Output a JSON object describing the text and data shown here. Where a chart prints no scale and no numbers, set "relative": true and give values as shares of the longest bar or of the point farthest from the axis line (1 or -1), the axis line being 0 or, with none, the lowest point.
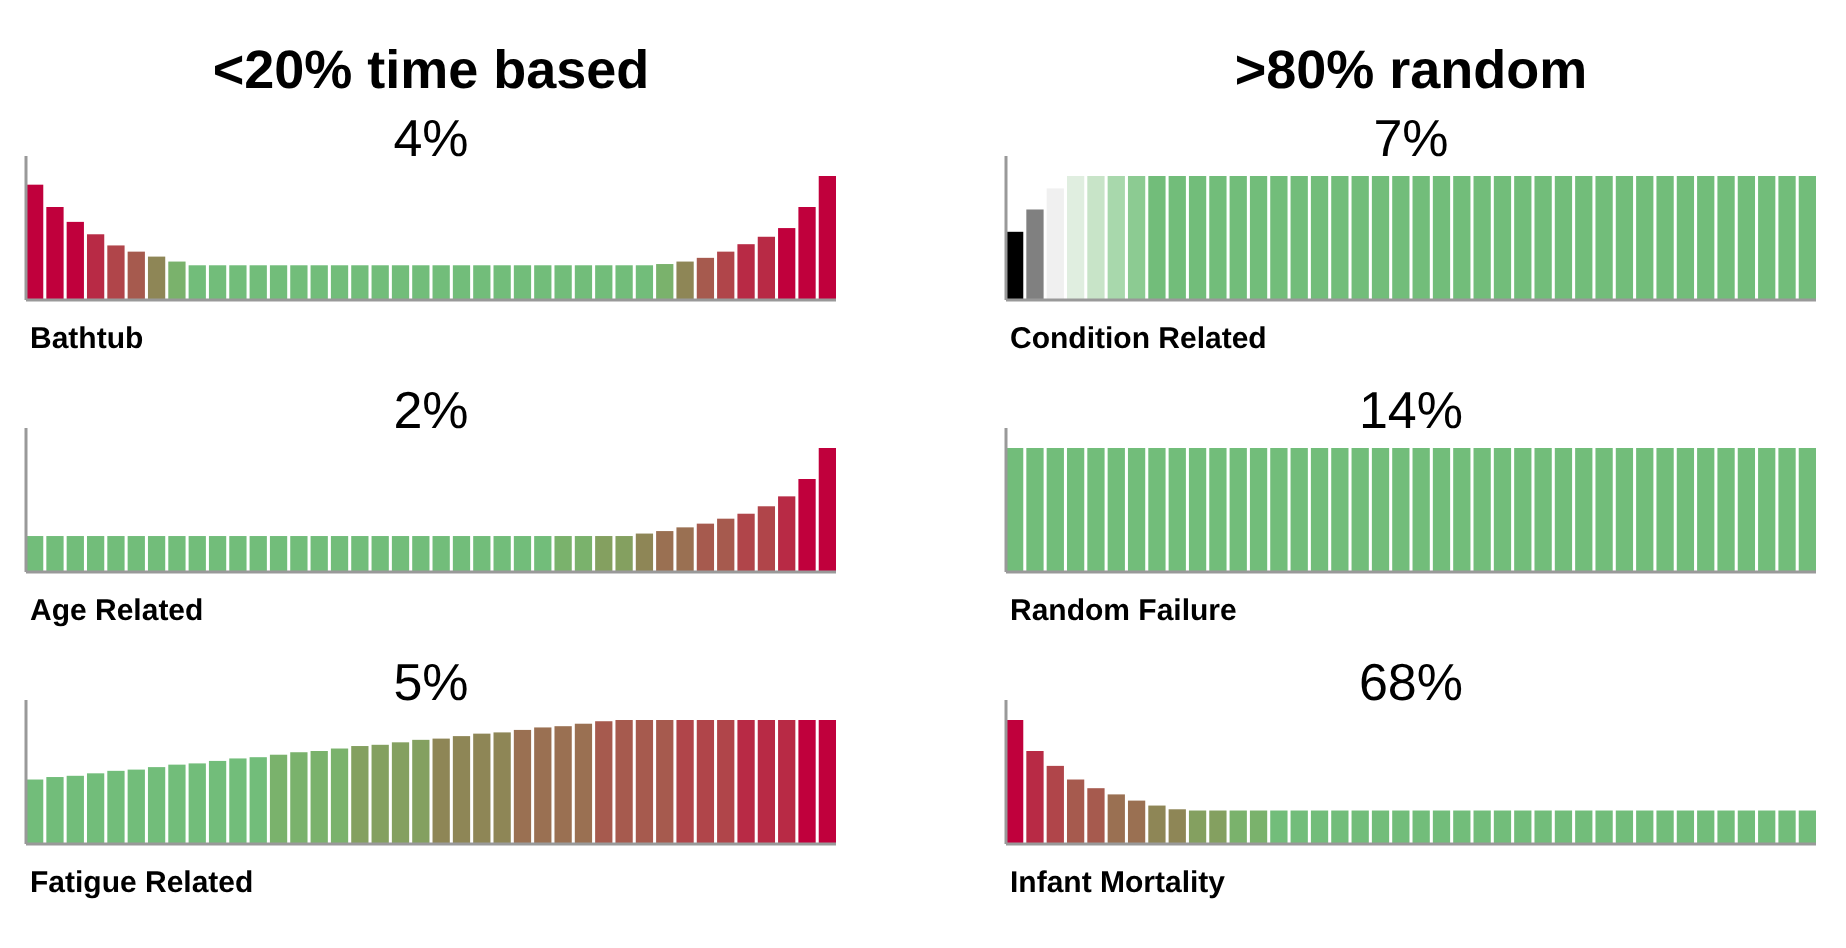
{
  "chart_data": [
    {
      "type": "bar",
      "title": "<20% time based",
      "xlabel": "Bathtub",
      "annotations": [
        "4%"
      ],
      "relative": true,
      "categories": [
        null,
        null,
        null,
        null,
        null,
        null,
        null,
        null,
        null,
        null,
        null,
        null,
        null,
        null,
        null,
        null,
        null,
        null,
        null,
        null,
        null,
        null,
        null,
        null,
        null,
        null,
        null,
        null,
        null,
        null,
        null,
        null,
        null,
        null,
        null,
        null,
        null,
        null,
        null,
        null
      ],
      "values": [
        0.93,
        0.75,
        0.63,
        0.53,
        0.44,
        0.39,
        0.35,
        0.31,
        0.28,
        0.28,
        0.28,
        0.28,
        0.28,
        0.28,
        0.28,
        0.28,
        0.28,
        0.28,
        0.28,
        0.28,
        0.28,
        0.28,
        0.28,
        0.28,
        0.28,
        0.28,
        0.28,
        0.28,
        0.28,
        0.28,
        0.28,
        0.29,
        0.31,
        0.34,
        0.39,
        0.45,
        0.51,
        0.58,
        0.75,
        1.0
      ],
      "colors": [
        "#c0003c",
        "#c0003c",
        "#c0003c",
        "#b82a45",
        "#b0454a",
        "#a65a4e",
        "#8e8656",
        "#7ab26c",
        "#72bd7a",
        "#72bd7a",
        "#72bd7a",
        "#72bd7a",
        "#72bd7a",
        "#72bd7a",
        "#72bd7a",
        "#72bd7a",
        "#72bd7a",
        "#72bd7a",
        "#72bd7a",
        "#72bd7a",
        "#72bd7a",
        "#72bd7a",
        "#72bd7a",
        "#72bd7a",
        "#72bd7a",
        "#72bd7a",
        "#72bd7a",
        "#72bd7a",
        "#72bd7a",
        "#72bd7a",
        "#72bd7a",
        "#7ab26c",
        "#8e8656",
        "#a65a4e",
        "#b0454a",
        "#b82a45",
        "#b82a45",
        "#c0003c",
        "#c0003c",
        "#c0003c"
      ]
    },
    {
      "type": "bar",
      "title": ">80% random",
      "xlabel": "Condition Related",
      "annotations": [
        "7%"
      ],
      "relative": true,
      "categories": [
        null,
        null,
        null,
        null,
        null,
        null,
        null,
        null,
        null,
        null,
        null,
        null,
        null,
        null,
        null,
        null,
        null,
        null,
        null,
        null,
        null,
        null,
        null,
        null,
        null,
        null,
        null,
        null,
        null,
        null,
        null,
        null,
        null,
        null,
        null,
        null,
        null,
        null,
        null,
        null
      ],
      "values": [
        0.55,
        0.73,
        0.9,
        1,
        1,
        1,
        1,
        1,
        1,
        1,
        1,
        1,
        1,
        1,
        1,
        1,
        1,
        1,
        1,
        1,
        1,
        1,
        1,
        1,
        1,
        1,
        1,
        1,
        1,
        1,
        1,
        1,
        1,
        1,
        1,
        1,
        1,
        1,
        1,
        1
      ],
      "colors": [
        "#000000",
        "#808080",
        "#f0f0f0",
        "#e0eee0",
        "#c8e4c8",
        "#a8d8ac",
        "#8ccb92",
        "#72bd7a",
        "#72bd7a",
        "#72bd7a",
        "#72bd7a",
        "#72bd7a",
        "#72bd7a",
        "#72bd7a",
        "#72bd7a",
        "#72bd7a",
        "#72bd7a",
        "#72bd7a",
        "#72bd7a",
        "#72bd7a",
        "#72bd7a",
        "#72bd7a",
        "#72bd7a",
        "#72bd7a",
        "#72bd7a",
        "#72bd7a",
        "#72bd7a",
        "#72bd7a",
        "#72bd7a",
        "#72bd7a",
        "#72bd7a",
        "#72bd7a",
        "#72bd7a",
        "#72bd7a",
        "#72bd7a",
        "#72bd7a",
        "#72bd7a",
        "#72bd7a",
        "#72bd7a",
        "#72bd7a"
      ]
    },
    {
      "type": "bar",
      "xlabel": "Age Related",
      "annotations": [
        "2%"
      ],
      "relative": true,
      "categories": [
        null,
        null,
        null,
        null,
        null,
        null,
        null,
        null,
        null,
        null,
        null,
        null,
        null,
        null,
        null,
        null,
        null,
        null,
        null,
        null,
        null,
        null,
        null,
        null,
        null,
        null,
        null,
        null,
        null,
        null,
        null,
        null,
        null,
        null,
        null,
        null,
        null,
        null,
        null,
        null
      ],
      "values": [
        0.29,
        0.29,
        0.29,
        0.29,
        0.29,
        0.29,
        0.29,
        0.29,
        0.29,
        0.29,
        0.29,
        0.29,
        0.29,
        0.29,
        0.29,
        0.29,
        0.29,
        0.29,
        0.29,
        0.29,
        0.29,
        0.29,
        0.29,
        0.29,
        0.29,
        0.29,
        0.29,
        0.29,
        0.29,
        0.29,
        0.31,
        0.33,
        0.36,
        0.39,
        0.43,
        0.47,
        0.53,
        0.61,
        0.75,
        1.0
      ],
      "colors": [
        "#72bd7a",
        "#72bd7a",
        "#72bd7a",
        "#72bd7a",
        "#72bd7a",
        "#72bd7a",
        "#72bd7a",
        "#72bd7a",
        "#72bd7a",
        "#72bd7a",
        "#72bd7a",
        "#72bd7a",
        "#72bd7a",
        "#72bd7a",
        "#72bd7a",
        "#72bd7a",
        "#72bd7a",
        "#72bd7a",
        "#72bd7a",
        "#72bd7a",
        "#72bd7a",
        "#72bd7a",
        "#72bd7a",
        "#72bd7a",
        "#72bd7a",
        "#72bd7a",
        "#7ab26c",
        "#7ab26c",
        "#84a060",
        "#84a060",
        "#8e8656",
        "#9a7052",
        "#9a7052",
        "#a65a4e",
        "#a65a4e",
        "#b0454a",
        "#b0454a",
        "#b82a45",
        "#c0003c",
        "#c0003c"
      ]
    },
    {
      "type": "bar",
      "xlabel": "Random Failure",
      "annotations": [
        "14%"
      ],
      "relative": true,
      "categories": [
        null,
        null,
        null,
        null,
        null,
        null,
        null,
        null,
        null,
        null,
        null,
        null,
        null,
        null,
        null,
        null,
        null,
        null,
        null,
        null,
        null,
        null,
        null,
        null,
        null,
        null,
        null,
        null,
        null,
        null,
        null,
        null,
        null,
        null,
        null,
        null,
        null,
        null,
        null,
        null
      ],
      "values": [
        1,
        1,
        1,
        1,
        1,
        1,
        1,
        1,
        1,
        1,
        1,
        1,
        1,
        1,
        1,
        1,
        1,
        1,
        1,
        1,
        1,
        1,
        1,
        1,
        1,
        1,
        1,
        1,
        1,
        1,
        1,
        1,
        1,
        1,
        1,
        1,
        1,
        1,
        1,
        1
      ],
      "colors": [
        "#72bd7a",
        "#72bd7a",
        "#72bd7a",
        "#72bd7a",
        "#72bd7a",
        "#72bd7a",
        "#72bd7a",
        "#72bd7a",
        "#72bd7a",
        "#72bd7a",
        "#72bd7a",
        "#72bd7a",
        "#72bd7a",
        "#72bd7a",
        "#72bd7a",
        "#72bd7a",
        "#72bd7a",
        "#72bd7a",
        "#72bd7a",
        "#72bd7a",
        "#72bd7a",
        "#72bd7a",
        "#72bd7a",
        "#72bd7a",
        "#72bd7a",
        "#72bd7a",
        "#72bd7a",
        "#72bd7a",
        "#72bd7a",
        "#72bd7a",
        "#72bd7a",
        "#72bd7a",
        "#72bd7a",
        "#72bd7a",
        "#72bd7a",
        "#72bd7a",
        "#72bd7a",
        "#72bd7a",
        "#72bd7a",
        "#72bd7a"
      ]
    },
    {
      "type": "bar",
      "xlabel": "Fatigue Related",
      "annotations": [
        "5%"
      ],
      "relative": true,
      "categories": [
        null,
        null,
        null,
        null,
        null,
        null,
        null,
        null,
        null,
        null,
        null,
        null,
        null,
        null,
        null,
        null,
        null,
        null,
        null,
        null,
        null,
        null,
        null,
        null,
        null,
        null,
        null,
        null,
        null,
        null,
        null,
        null,
        null,
        null,
        null,
        null,
        null,
        null,
        null,
        null
      ],
      "values": [
        0.52,
        0.54,
        0.55,
        0.57,
        0.59,
        0.6,
        0.62,
        0.64,
        0.65,
        0.67,
        0.69,
        0.7,
        0.72,
        0.74,
        0.75,
        0.77,
        0.79,
        0.8,
        0.82,
        0.84,
        0.85,
        0.87,
        0.89,
        0.9,
        0.92,
        0.94,
        0.95,
        0.97,
        0.99,
        1,
        1,
        1,
        1,
        1,
        1,
        1,
        1,
        1,
        1,
        1
      ],
      "colors": [
        "#72bd7a",
        "#72bd7a",
        "#72bd7a",
        "#72bd7a",
        "#72bd7a",
        "#72bd7a",
        "#72bd7a",
        "#72bd7a",
        "#72bd7a",
        "#72bd7a",
        "#72bd7a",
        "#72bd7a",
        "#7ab26c",
        "#7ab26c",
        "#7ab26c",
        "#7ab26c",
        "#84a060",
        "#84a060",
        "#84a060",
        "#84a060",
        "#8e8656",
        "#8e8656",
        "#8e8656",
        "#8e8656",
        "#9a7052",
        "#9a7052",
        "#9a7052",
        "#9a7052",
        "#a65a4e",
        "#a65a4e",
        "#a65a4e",
        "#a65a4e",
        "#b0454a",
        "#b0454a",
        "#b0454a",
        "#b82a45",
        "#b82a45",
        "#b82a45",
        "#c0003c",
        "#c0003c"
      ]
    },
    {
      "type": "bar",
      "xlabel": "Infant Mortality",
      "annotations": [
        "68%"
      ],
      "relative": true,
      "categories": [
        null,
        null,
        null,
        null,
        null,
        null,
        null,
        null,
        null,
        null,
        null,
        null,
        null,
        null,
        null,
        null,
        null,
        null,
        null,
        null,
        null,
        null,
        null,
        null,
        null,
        null,
        null,
        null,
        null,
        null,
        null,
        null,
        null,
        null,
        null,
        null,
        null,
        null,
        null,
        null
      ],
      "values": [
        1.0,
        0.75,
        0.63,
        0.52,
        0.45,
        0.4,
        0.35,
        0.31,
        0.28,
        0.27,
        0.27,
        0.27,
        0.27,
        0.27,
        0.27,
        0.27,
        0.27,
        0.27,
        0.27,
        0.27,
        0.27,
        0.27,
        0.27,
        0.27,
        0.27,
        0.27,
        0.27,
        0.27,
        0.27,
        0.27,
        0.27,
        0.27,
        0.27,
        0.27,
        0.27,
        0.27,
        0.27,
        0.27,
        0.27,
        0.27
      ],
      "colors": [
        "#c0003c",
        "#b82a45",
        "#b0454a",
        "#a65a4e",
        "#a65a4e",
        "#9a7052",
        "#9a7052",
        "#8e8656",
        "#8e8656",
        "#84a060",
        "#84a060",
        "#7ab26c",
        "#7ab26c",
        "#72bd7a",
        "#72bd7a",
        "#72bd7a",
        "#72bd7a",
        "#72bd7a",
        "#72bd7a",
        "#72bd7a",
        "#72bd7a",
        "#72bd7a",
        "#72bd7a",
        "#72bd7a",
        "#72bd7a",
        "#72bd7a",
        "#72bd7a",
        "#72bd7a",
        "#72bd7a",
        "#72bd7a",
        "#72bd7a",
        "#72bd7a",
        "#72bd7a",
        "#72bd7a",
        "#72bd7a",
        "#72bd7a",
        "#72bd7a",
        "#72bd7a",
        "#72bd7a",
        "#72bd7a"
      ]
    }
  ]
}
